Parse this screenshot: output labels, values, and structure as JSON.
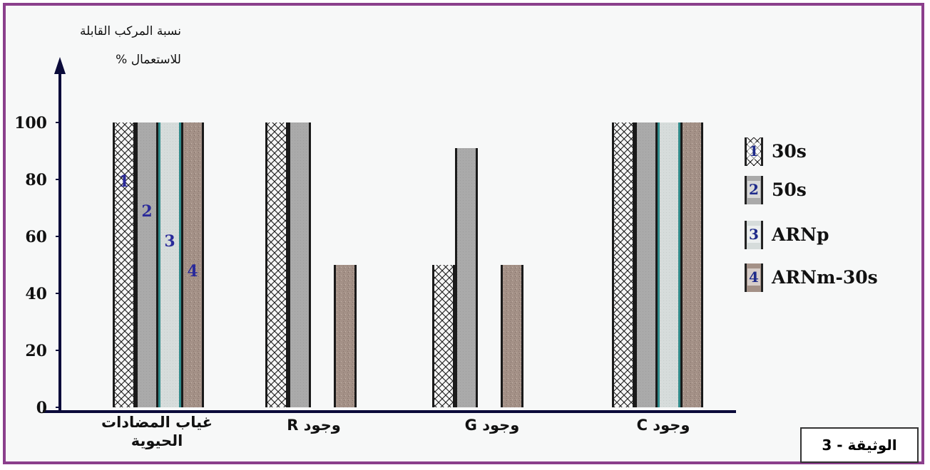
{
  "chart_data": {
    "type": "bar",
    "ylabel_line1": "نسبة المركب القابلة",
    "ylabel_line2": "للاستعمال %",
    "yticks": [
      0,
      20,
      40,
      60,
      80,
      100
    ],
    "ylim": [
      0,
      100
    ],
    "categories": [
      "غياب المضادات الحيوية",
      "وجود R",
      "وجود G",
      "وجود C"
    ],
    "series": [
      {
        "name": "30s",
        "number": "1",
        "values": [
          100,
          100,
          50,
          100
        ]
      },
      {
        "name": "50s",
        "number": "2",
        "values": [
          100,
          100,
          91,
          100
        ]
      },
      {
        "name": "ARNp",
        "number": "3",
        "values": [
          100,
          0,
          0,
          100
        ]
      },
      {
        "name": "ARNm-30s",
        "number": "4",
        "values": [
          100,
          50,
          50,
          100
        ]
      }
    ],
    "legend_position": "right",
    "grid": false
  },
  "document_label": "الوثيقة - 3",
  "colors": {
    "frame": "#8b3f8c",
    "axis": "#0b0b3a",
    "series_numbers": "#2a2a9a",
    "bar_30s": "#f4f4f4",
    "bar_50s": "#a9a9a9",
    "bar_ARNp": "#d2d7d6",
    "bar_ARNm": "#a7988f"
  }
}
